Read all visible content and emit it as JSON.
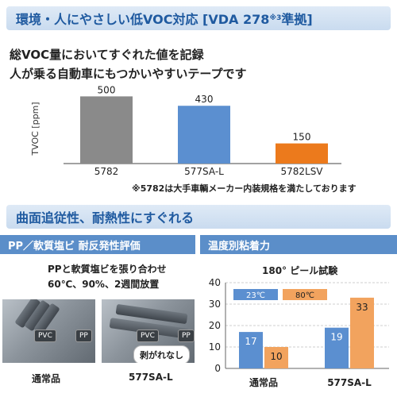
{
  "header": {
    "title": "環境・人にやさしい低VOC対応 [VDA 278",
    "title_sup": "※3",
    "title_tail": "準拠]"
  },
  "intro": {
    "line1": "総VOC量においてすぐれた値を記録",
    "line2": "人が乗る自動車にもつかいやすいテープです"
  },
  "voc_note": "※5782は大手車輌メーカー内装規格を満たしております",
  "section2": {
    "title": "曲面追従性、耐熱性にすぐれる"
  },
  "pp_panel": {
    "title": "PP／軟質塩ビ 耐反発性評価",
    "desc1": "PPと軟質塩ビを張り合わせ",
    "desc2": "60℃、90%、2週間放置",
    "photo1": {
      "pvc": "PVC",
      "pp": "PP",
      "caption": "通常品"
    },
    "photo2": {
      "pvc": "PVC",
      "pp": "PP",
      "badge": "剥がれなし",
      "caption": "577SA-L"
    }
  },
  "temp_panel": {
    "title": "温度別粘着力",
    "subtitle": "180° ピール試験"
  },
  "chart_data": [
    {
      "type": "bar",
      "title": "",
      "ylabel": "TVOC [ppm]",
      "xlabel": "",
      "categories": [
        "5782",
        "577SA-L",
        "5782LSV"
      ],
      "values": [
        500,
        430,
        150
      ],
      "colors": [
        "#8a8a8a",
        "#5b8fd0",
        "#ec7a1c"
      ],
      "ylim": [
        0,
        520
      ],
      "grid": false,
      "legend": "none"
    },
    {
      "type": "bar",
      "title": "180° ピール試験",
      "xlabel": "",
      "ylabel": "",
      "categories": [
        "通常品",
        "577SA-L"
      ],
      "series": [
        {
          "name": "23℃",
          "values": [
            17,
            19
          ],
          "color": "#5b8fd0"
        },
        {
          "name": "80℃",
          "values": [
            10,
            33
          ],
          "color": "#f2a35e"
        }
      ],
      "ylim": [
        0,
        40
      ],
      "yticks": [
        0,
        10,
        20,
        30,
        40
      ],
      "grid": true,
      "legend": "top-left"
    }
  ]
}
